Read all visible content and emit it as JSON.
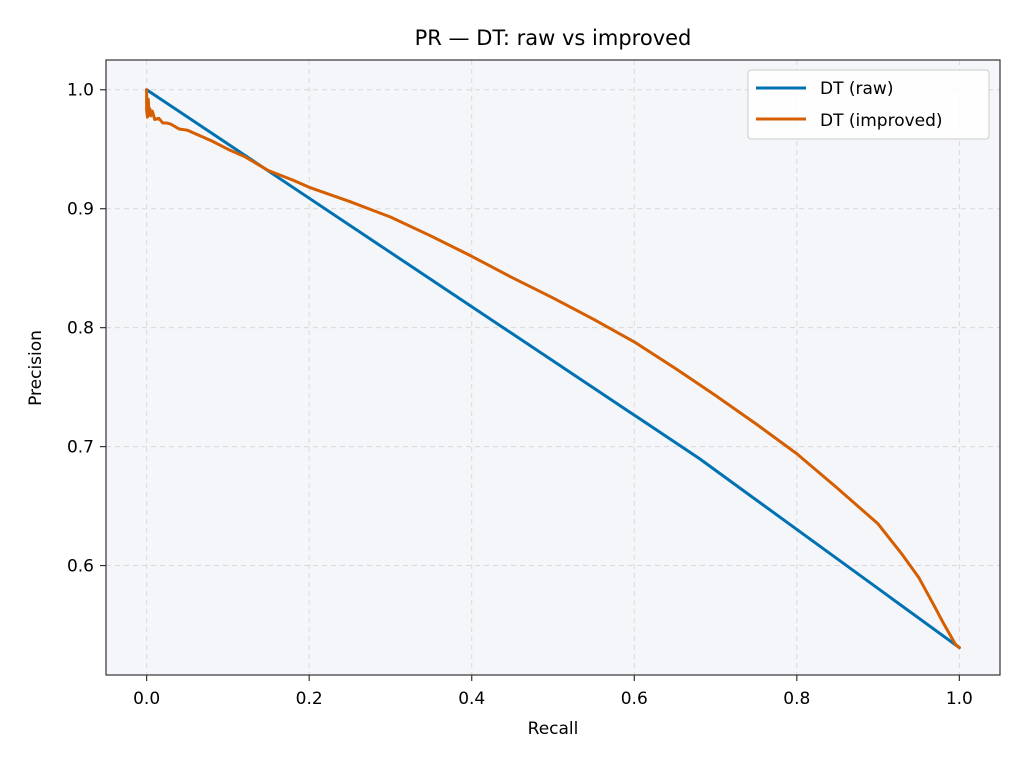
{
  "chart_data": {
    "type": "line",
    "title": "PR — DT: raw vs improved",
    "xlabel": "Recall",
    "ylabel": "Precision",
    "xlim": [
      -0.05,
      1.05
    ],
    "ylim": [
      0.508,
      1.025
    ],
    "xticks": [
      0.0,
      0.2,
      0.4,
      0.6,
      0.8,
      1.0
    ],
    "xtick_labels": [
      "0.0",
      "0.2",
      "0.4",
      "0.6",
      "0.8",
      "1.0"
    ],
    "yticks": [
      0.6,
      0.7,
      0.8,
      0.9,
      1.0
    ],
    "ytick_labels": [
      "0.6",
      "0.7",
      "0.8",
      "0.9",
      "1.0"
    ],
    "grid": true,
    "legend_position": "top-right",
    "series": [
      {
        "name": "DT (raw)",
        "color": "#0072b2",
        "x": [
          0.0,
          0.68,
          1.0
        ],
        "y": [
          1.0,
          0.69,
          0.531
        ]
      },
      {
        "name": "DT (improved)",
        "color": "#d55e00",
        "x": [
          0.0,
          0.0,
          0.001,
          0.002,
          0.003,
          0.004,
          0.005,
          0.007,
          0.01,
          0.015,
          0.02,
          0.025,
          0.03,
          0.04,
          0.05,
          0.06,
          0.08,
          0.1,
          0.12,
          0.15,
          0.18,
          0.2,
          0.25,
          0.3,
          0.35,
          0.4,
          0.45,
          0.5,
          0.55,
          0.6,
          0.65,
          0.7,
          0.75,
          0.8,
          0.85,
          0.9,
          0.93,
          0.95,
          0.97,
          0.98,
          0.99,
          0.995,
          1.0
        ],
        "y": [
          1.0,
          0.983,
          0.977,
          0.992,
          0.979,
          0.984,
          0.978,
          0.982,
          0.975,
          0.976,
          0.972,
          0.972,
          0.971,
          0.967,
          0.966,
          0.963,
          0.957,
          0.95,
          0.944,
          0.932,
          0.924,
          0.918,
          0.906,
          0.893,
          0.877,
          0.86,
          0.842,
          0.825,
          0.807,
          0.788,
          0.766,
          0.743,
          0.719,
          0.694,
          0.665,
          0.635,
          0.609,
          0.59,
          0.565,
          0.552,
          0.54,
          0.534,
          0.531
        ]
      }
    ]
  }
}
